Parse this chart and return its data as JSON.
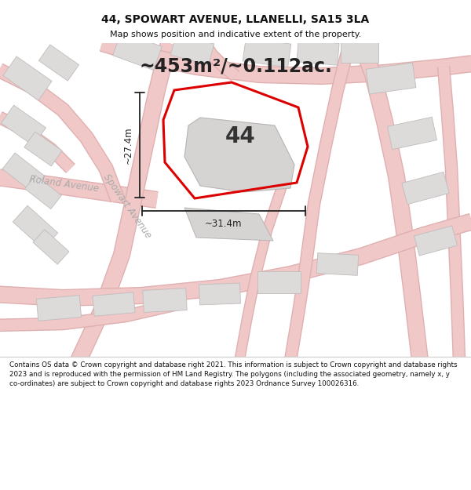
{
  "title": "44, SPOWART AVENUE, LLANELLI, SA15 3LA",
  "subtitle": "Map shows position and indicative extent of the property.",
  "area_text": "~453m²/~0.112ac.",
  "property_number": "44",
  "dim_vertical": "~27.4m",
  "dim_horizontal": "~31.4m",
  "street_spowart": "Spowart Avenue",
  "street_roland": "Roland Avenue",
  "footer": "Contains OS data © Crown copyright and database right 2021. This information is subject to Crown copyright and database rights 2023 and is reproduced with the permission of HM Land Registry. The polygons (including the associated geometry, namely x, y co-ordinates) are subject to Crown copyright and database rights 2023 Ordnance Survey 100026316.",
  "map_bg": "#f2f0f0",
  "road_color": "#f0c8c8",
  "road_edge_color": "#e0b0b0",
  "plot_outline_color": "#dd0000",
  "building_fill": "#dddada",
  "building_edge": "#c0bcbc",
  "dim_line_color": "#222222",
  "title_color": "#111111",
  "footer_color": "#111111",
  "street_label_color": "#aaaaaa",
  "white": "#ffffff"
}
